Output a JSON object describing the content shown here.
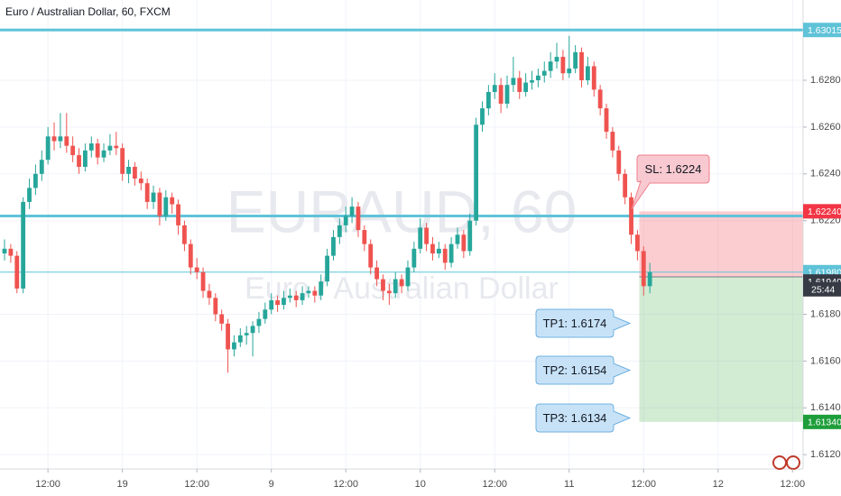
{
  "chart_data": {
    "type": "candlestick",
    "title": "Euro / Australian Dollar, 60, FXCM",
    "watermark": "EURAUD, 60",
    "watermark_subtitle": "Euro / Australian Dollar",
    "up_color": "#26a69a",
    "down_color": "#ef5350",
    "xlim": [
      -0.73,
      128.7
    ],
    "ylim": [
      1.61139,
      1.63143
    ],
    "xticks": [
      {
        "value": 7,
        "label": "12:00"
      },
      19,
      {
        "value": 31,
        "label": "12:00"
      },
      {
        "value": 43,
        "label": "9"
      },
      {
        "value": 55,
        "label": "12:00"
      },
      {
        "value": 67,
        "label": "10"
      },
      {
        "value": 79,
        "label": "12:00"
      },
      {
        "value": 91,
        "label": "11"
      },
      {
        "value": 103,
        "label": "12:00"
      },
      {
        "value": 115,
        "label": "12"
      },
      {
        "value": 127,
        "label": "12:00"
      }
    ],
    "yticks": [
      {
        "value": 1.628,
        "label": "1.62800"
      },
      {
        "value": 1.626,
        "label": "1.62600"
      },
      {
        "value": 1.624,
        "label": "1.62400"
      },
      {
        "value": 1.622,
        "label": "1.62200"
      },
      {
        "value": 1.618,
        "label": "1.61800"
      },
      {
        "value": 1.616,
        "label": "1.61600"
      },
      {
        "value": 1.614,
        "label": "1.61400"
      },
      {
        "value": 1.612,
        "label": "1.61200"
      }
    ],
    "candles": [
      [
        1.6206,
        1.6212,
        1.6203,
        1.6208
      ],
      [
        1.6208,
        1.621,
        1.6202,
        1.6205
      ],
      [
        1.6205,
        1.6207,
        1.6189,
        1.6191
      ],
      [
        1.6191,
        1.623,
        1.6189,
        1.6228
      ],
      [
        1.6228,
        1.6238,
        1.6225,
        1.6234
      ],
      [
        1.6234,
        1.6244,
        1.6231,
        1.624
      ],
      [
        1.624,
        1.625,
        1.6237,
        1.6246
      ],
      [
        1.6246,
        1.626,
        1.6244,
        1.6256
      ],
      [
        1.6256,
        1.6262,
        1.625,
        1.6254
      ],
      [
        1.6254,
        1.6266,
        1.6251,
        1.6256
      ],
      [
        1.6256,
        1.6266,
        1.6249,
        1.6252
      ],
      [
        1.6252,
        1.6256,
        1.6245,
        1.6248
      ],
      [
        1.6248,
        1.6251,
        1.624,
        1.6243
      ],
      [
        1.6243,
        1.6253,
        1.6241,
        1.625
      ],
      [
        1.625,
        1.6256,
        1.6247,
        1.6253
      ],
      [
        1.6253,
        1.6255,
        1.6244,
        1.6247
      ],
      [
        1.6247,
        1.6253,
        1.6245,
        1.625
      ],
      [
        1.625,
        1.6257,
        1.6248,
        1.6252
      ],
      [
        1.6252,
        1.6258,
        1.6248,
        1.6251
      ],
      [
        1.6251,
        1.6253,
        1.6237,
        1.624
      ],
      [
        1.624,
        1.6246,
        1.6236,
        1.6243
      ],
      [
        1.6243,
        1.6245,
        1.6235,
        1.6238
      ],
      [
        1.6238,
        1.6241,
        1.6233,
        1.6236
      ],
      [
        1.6236,
        1.6238,
        1.6225,
        1.6228
      ],
      [
        1.6228,
        1.6235,
        1.6225,
        1.6232
      ],
      [
        1.6232,
        1.6234,
        1.6218,
        1.6222
      ],
      [
        1.6222,
        1.6233,
        1.622,
        1.623
      ],
      [
        1.623,
        1.6232,
        1.6223,
        1.6227
      ],
      [
        1.6227,
        1.6229,
        1.6214,
        1.6218
      ],
      [
        1.6218,
        1.622,
        1.6207,
        1.621
      ],
      [
        1.621,
        1.6212,
        1.6197,
        1.62
      ],
      [
        1.62,
        1.6204,
        1.6195,
        1.6198
      ],
      [
        1.6198,
        1.62,
        1.6187,
        1.619
      ],
      [
        1.619,
        1.6193,
        1.6184,
        1.6187
      ],
      [
        1.6187,
        1.6189,
        1.6177,
        1.618
      ],
      [
        1.618,
        1.6182,
        1.6173,
        1.6176
      ],
      [
        1.6176,
        1.6178,
        1.6155,
        1.6165
      ],
      [
        1.6165,
        1.6171,
        1.6162,
        1.6168
      ],
      [
        1.6168,
        1.6174,
        1.6166,
        1.6171
      ],
      [
        1.6171,
        1.6175,
        1.6167,
        1.6172
      ],
      [
        1.6172,
        1.6177,
        1.6162,
        1.6175
      ],
      [
        1.6175,
        1.6181,
        1.6172,
        1.6178
      ],
      [
        1.6178,
        1.6185,
        1.6176,
        1.6182
      ],
      [
        1.6182,
        1.6189,
        1.618,
        1.6186
      ],
      [
        1.6186,
        1.6188,
        1.6181,
        1.6184
      ],
      [
        1.6184,
        1.619,
        1.6182,
        1.6187
      ],
      [
        1.6187,
        1.6191,
        1.6185,
        1.6188
      ],
      [
        1.6188,
        1.619,
        1.6183,
        1.6186
      ],
      [
        1.6186,
        1.6192,
        1.6184,
        1.6189
      ],
      [
        1.6189,
        1.6192,
        1.6187,
        1.619
      ],
      [
        1.619,
        1.6192,
        1.6185,
        1.6188
      ],
      [
        1.6188,
        1.6197,
        1.6186,
        1.6194
      ],
      [
        1.6194,
        1.6208,
        1.6192,
        1.6205
      ],
      [
        1.6205,
        1.6216,
        1.6203,
        1.6213
      ],
      [
        1.6213,
        1.6221,
        1.621,
        1.6218
      ],
      [
        1.6218,
        1.6226,
        1.6215,
        1.6222
      ],
      [
        1.6222,
        1.623,
        1.6219,
        1.6226
      ],
      [
        1.6226,
        1.6228,
        1.6213,
        1.6216
      ],
      [
        1.6216,
        1.6218,
        1.6207,
        1.621
      ],
      [
        1.621,
        1.6212,
        1.6197,
        1.62
      ],
      [
        1.62,
        1.6203,
        1.6192,
        1.6195
      ],
      [
        1.6195,
        1.6197,
        1.6186,
        1.619
      ],
      [
        1.619,
        1.6193,
        1.6184,
        1.6189
      ],
      [
        1.6189,
        1.6198,
        1.6187,
        1.6195
      ],
      [
        1.6195,
        1.6197,
        1.6189,
        1.6192
      ],
      [
        1.6192,
        1.6203,
        1.619,
        1.62
      ],
      [
        1.62,
        1.6211,
        1.6198,
        1.6208
      ],
      [
        1.6208,
        1.6221,
        1.6206,
        1.6217
      ],
      [
        1.6217,
        1.6219,
        1.6207,
        1.621
      ],
      [
        1.621,
        1.6213,
        1.6203,
        1.6206
      ],
      [
        1.6206,
        1.6211,
        1.6204,
        1.6208
      ],
      [
        1.6208,
        1.621,
        1.6199,
        1.6202
      ],
      [
        1.6202,
        1.6213,
        1.62,
        1.621
      ],
      [
        1.621,
        1.6217,
        1.6208,
        1.6214
      ],
      [
        1.6214,
        1.6216,
        1.6204,
        1.6207
      ],
      [
        1.6207,
        1.6223,
        1.6205,
        1.622
      ],
      [
        1.622,
        1.6264,
        1.6218,
        1.6261
      ],
      [
        1.6261,
        1.6271,
        1.6258,
        1.6268
      ],
      [
        1.6268,
        1.6278,
        1.6265,
        1.6275
      ],
      [
        1.6275,
        1.6283,
        1.6272,
        1.6278
      ],
      [
        1.6278,
        1.6281,
        1.6266,
        1.627
      ],
      [
        1.627,
        1.6282,
        1.6268,
        1.6278
      ],
      [
        1.6278,
        1.629,
        1.6275,
        1.6281
      ],
      [
        1.6281,
        1.6284,
        1.6272,
        1.6275
      ],
      [
        1.6275,
        1.6283,
        1.6273,
        1.6279
      ],
      [
        1.6279,
        1.6284,
        1.6276,
        1.628
      ],
      [
        1.628,
        1.6285,
        1.6277,
        1.6282
      ],
      [
        1.6282,
        1.6288,
        1.6279,
        1.6284
      ],
      [
        1.6284,
        1.6292,
        1.6281,
        1.6288
      ],
      [
        1.6288,
        1.6296,
        1.6285,
        1.629
      ],
      [
        1.629,
        1.6293,
        1.628,
        1.6283
      ],
      [
        1.6283,
        1.6299,
        1.6281,
        1.6285
      ],
      [
        1.6285,
        1.6295,
        1.6283,
        1.6292
      ],
      [
        1.6292,
        1.6294,
        1.6277,
        1.628
      ],
      [
        1.628,
        1.629,
        1.6278,
        1.6286
      ],
      [
        1.6286,
        1.6288,
        1.6273,
        1.6276
      ],
      [
        1.6276,
        1.6278,
        1.6265,
        1.6268
      ],
      [
        1.6268,
        1.627,
        1.6255,
        1.6258
      ],
      [
        1.6258,
        1.626,
        1.6247,
        1.625
      ],
      [
        1.625,
        1.6252,
        1.6237,
        1.624
      ],
      [
        1.624,
        1.6242,
        1.6227,
        1.623
      ],
      [
        1.623,
        1.6232,
        1.621,
        1.6214
      ],
      [
        1.6214,
        1.6216,
        1.6203,
        1.6207
      ],
      [
        1.6207,
        1.6209,
        1.6188,
        1.6192
      ],
      [
        1.6192,
        1.6202,
        1.6189,
        1.6198
      ]
    ],
    "levels": [
      {
        "value": 1.63015,
        "style": "thick"
      },
      {
        "value": 1.6222,
        "style": "thick"
      },
      {
        "value": 1.6198,
        "style": "thin"
      }
    ],
    "level_color": "#5fc3d8",
    "position": {
      "x_start": 102.3,
      "entry": 1.6196,
      "stop": 1.6224,
      "target": 1.6134,
      "stop_color": "rgba(242,54,69,0.25)",
      "target_color": "rgba(76,175,80,0.25)"
    },
    "price_labels": [
      {
        "value": 1.63015,
        "label": "1.63015",
        "color": "#5fc3d8"
      },
      {
        "value": 1.6224,
        "label": "1.62240",
        "color": "#f23645"
      },
      {
        "value": 1.6198,
        "label": "1.61980",
        "color": "#5fc3d8"
      },
      {
        "value": 1.6194,
        "label": "1.61940",
        "color": "#363a45"
      },
      {
        "value": 1.6134,
        "label": "1.61340",
        "color": "#1e9e3a"
      }
    ],
    "countdown": "25:44",
    "callouts": [
      {
        "text": "SL: 1.6224",
        "kind": "stop"
      },
      {
        "text": "TP1: 1.6174",
        "kind": "target"
      },
      {
        "text": "TP2: 1.6154",
        "kind": "target"
      },
      {
        "text": "TP3: 1.6134",
        "kind": "target"
      }
    ]
  }
}
